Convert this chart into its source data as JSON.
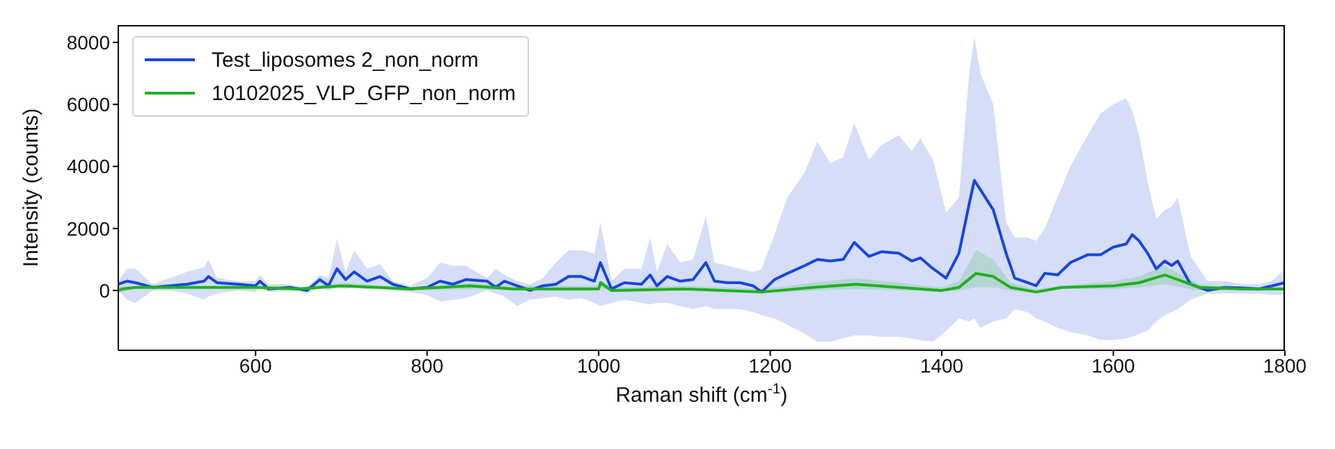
{
  "chart_data": {
    "type": "line",
    "xlabel": "Raman shift (cm$^{-1}$)",
    "ylabel": "Intensity (counts)",
    "xlim": [
      440,
      1800
    ],
    "ylim": [
      -1930,
      8560
    ],
    "xticks": [
      600,
      800,
      1000,
      1200,
      1400,
      1600,
      1800
    ],
    "yticks": [
      0,
      2000,
      4000,
      6000,
      8000
    ],
    "legend": "top left",
    "series": [
      {
        "name": "Test_liposomes 2_non_norm",
        "color": "#1645e0",
        "x": [
          440,
          450,
          460,
          480,
          500,
          520,
          540,
          545,
          555,
          580,
          600,
          605,
          615,
          640,
          660,
          675,
          685,
          695,
          705,
          715,
          730,
          745,
          760,
          780,
          800,
          815,
          830,
          845,
          870,
          880,
          890,
          905,
          920,
          935,
          950,
          965,
          980,
          995,
          1002,
          1015,
          1030,
          1050,
          1060,
          1068,
          1080,
          1095,
          1110,
          1125,
          1135,
          1150,
          1165,
          1180,
          1190,
          1205,
          1220,
          1240,
          1255,
          1270,
          1285,
          1298,
          1315,
          1330,
          1350,
          1365,
          1375,
          1390,
          1405,
          1420,
          1432,
          1438,
          1445,
          1460,
          1475,
          1485,
          1500,
          1510,
          1520,
          1535,
          1550,
          1570,
          1585,
          1600,
          1615,
          1622,
          1630,
          1640,
          1650,
          1660,
          1668,
          1675,
          1690,
          1710,
          1730,
          1750,
          1770,
          1785,
          1800
        ],
        "values": [
          200,
          300,
          250,
          100,
          150,
          200,
          300,
          450,
          250,
          200,
          150,
          300,
          50,
          100,
          0,
          350,
          150,
          700,
          350,
          600,
          300,
          450,
          200,
          50,
          100,
          300,
          200,
          350,
          300,
          100,
          300,
          150,
          0,
          150,
          200,
          450,
          450,
          300,
          900,
          50,
          250,
          200,
          500,
          150,
          450,
          300,
          350,
          900,
          300,
          250,
          250,
          150,
          -50,
          350,
          550,
          800,
          1000,
          950,
          1000,
          1550,
          1100,
          1250,
          1200,
          950,
          1050,
          700,
          400,
          1200,
          2800,
          3550,
          3250,
          2600,
          1200,
          400,
          250,
          150,
          550,
          500,
          900,
          1150,
          1150,
          1400,
          1500,
          1800,
          1600,
          1200,
          700,
          950,
          800,
          950,
          200,
          0,
          100,
          80,
          50,
          150,
          250
        ],
        "lower": [
          0,
          -300,
          -400,
          0,
          0,
          -100,
          -300,
          -200,
          -100,
          0,
          -50,
          100,
          -50,
          0,
          -100,
          100,
          0,
          100,
          50,
          100,
          50,
          100,
          0,
          -50,
          -150,
          -350,
          -300,
          -250,
          0,
          -100,
          -200,
          -500,
          -300,
          -250,
          -200,
          -300,
          -250,
          -400,
          -500,
          -400,
          -300,
          -400,
          -450,
          -400,
          -400,
          -500,
          -600,
          -500,
          -600,
          -600,
          -600,
          -700,
          -800,
          -900,
          -1100,
          -1400,
          -1650,
          -1650,
          -1550,
          -1450,
          -1450,
          -1500,
          -1500,
          -1550,
          -1600,
          -1650,
          -1300,
          -900,
          -1000,
          -900,
          -1200,
          -1000,
          -900,
          -600,
          -700,
          -900,
          -1000,
          -1200,
          -1350,
          -1450,
          -1600,
          -1600,
          -1550,
          -1500,
          -1400,
          -1300,
          -1000,
          -800,
          -700,
          -600,
          -300,
          -100,
          -100,
          -100,
          -100,
          -150,
          -150
        ],
        "upper": [
          300,
          700,
          700,
          200,
          400,
          600,
          750,
          1000,
          400,
          300,
          300,
          500,
          200,
          200,
          100,
          500,
          400,
          1650,
          600,
          1300,
          700,
          850,
          300,
          150,
          400,
          900,
          800,
          800,
          400,
          700,
          500,
          300,
          200,
          400,
          900,
          1300,
          1300,
          1200,
          2200,
          300,
          700,
          700,
          1700,
          600,
          1500,
          900,
          1000,
          2400,
          900,
          800,
          700,
          600,
          700,
          1800,
          3000,
          3800,
          4800,
          4100,
          4300,
          5400,
          4200,
          4700,
          5000,
          4500,
          4900,
          4200,
          2500,
          3000,
          7000,
          8200,
          7000,
          6000,
          2200,
          1700,
          1700,
          1600,
          2000,
          3000,
          4000,
          5000,
          5700,
          6000,
          6200,
          5800,
          5000,
          3500,
          2300,
          2600,
          2700,
          3000,
          1100,
          300,
          300,
          200,
          200,
          300,
          700
        ]
      },
      {
        "name": "10102025_VLP_GFP_non_norm",
        "color": "#1fb01f",
        "x": [
          440,
          445,
          460,
          500,
          600,
          650,
          700,
          780,
          850,
          900,
          1000,
          1002,
          1015,
          1100,
          1190,
          1250,
          1300,
          1350,
          1400,
          1420,
          1440,
          1460,
          1480,
          1510,
          1540,
          1600,
          1630,
          1660,
          1700,
          1750,
          1800
        ],
        "values": [
          0,
          50,
          100,
          100,
          100,
          50,
          150,
          50,
          150,
          50,
          50,
          250,
          0,
          50,
          -50,
          100,
          200,
          100,
          0,
          100,
          550,
          450,
          100,
          -50,
          100,
          150,
          250,
          500,
          100,
          50,
          50
        ],
        "lower": [
          -100,
          -50,
          50,
          50,
          50,
          0,
          100,
          0,
          50,
          0,
          0,
          100,
          -50,
          0,
          -100,
          0,
          50,
          0,
          -50,
          0,
          100,
          100,
          0,
          -100,
          50,
          50,
          100,
          200,
          0,
          0,
          0
        ],
        "upper": [
          100,
          150,
          150,
          150,
          150,
          100,
          250,
          100,
          250,
          150,
          150,
          350,
          100,
          150,
          50,
          250,
          400,
          250,
          100,
          300,
          1300,
          1000,
          250,
          50,
          150,
          300,
          450,
          800,
          200,
          100,
          100
        ]
      }
    ]
  }
}
